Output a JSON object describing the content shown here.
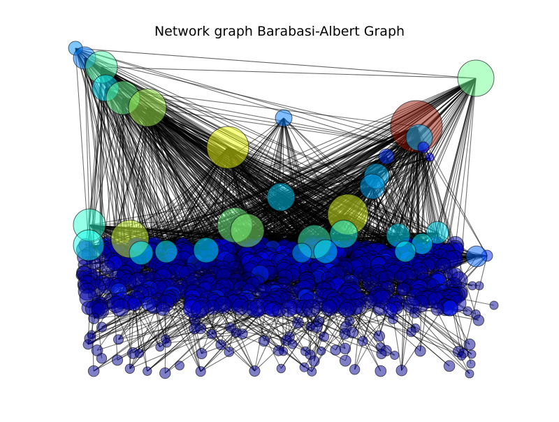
{
  "figure": {
    "title": "Network graph Barabasi-Albert Graph"
  },
  "graph": {
    "model": "Barabasi-Albert",
    "edge_color": "#000000",
    "node_colormap": [
      "#00008f",
      "#0000ff",
      "#0080ff",
      "#00ffff",
      "#80ff80",
      "#ffff00",
      "#ff8000",
      "#800000"
    ]
  }
}
